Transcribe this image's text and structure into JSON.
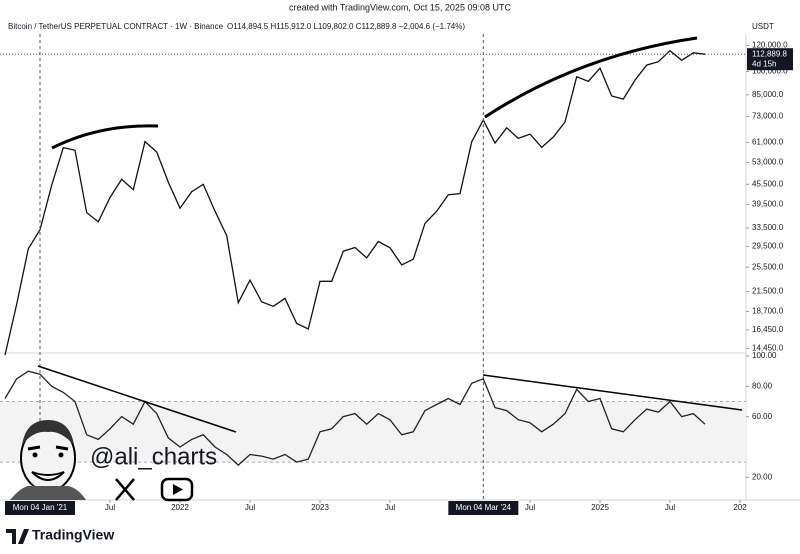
{
  "header": {
    "created": "created with TradingView.com, Oct 15, 2025 09:08 UTC",
    "brand": "TradingView"
  },
  "watermark": {
    "handle": "@ali_charts"
  },
  "chart_data": [
    {
      "type": "line",
      "title": "Bitcoin / TetherUS PERPETUAL CONTRACT · 1W · Binance",
      "ohlc": "O114,894.5 H115,912.0 L109,802.0 C112,889.8 −2,004.6 (−1.74%)",
      "unit": "USDT",
      "color": "#111111",
      "scale": "log",
      "x": [
        "2020-10",
        "2020-11",
        "2020-12",
        "2021-01",
        "2021-02",
        "2021-03",
        "2021-04",
        "2021-05",
        "2021-06",
        "2021-07",
        "2021-08",
        "2021-09",
        "2021-10",
        "2021-11",
        "2021-12",
        "2022-01",
        "2022-02",
        "2022-03",
        "2022-04",
        "2022-05",
        "2022-06",
        "2022-07",
        "2022-08",
        "2022-09",
        "2022-10",
        "2022-11",
        "2022-12",
        "2023-01",
        "2023-02",
        "2023-03",
        "2023-04",
        "2023-05",
        "2023-06",
        "2023-07",
        "2023-08",
        "2023-09",
        "2023-10",
        "2023-11",
        "2023-12",
        "2024-01",
        "2024-02",
        "2024-03",
        "2024-04",
        "2024-05",
        "2024-06",
        "2024-07",
        "2024-08",
        "2024-09",
        "2024-10",
        "2024-11",
        "2024-12",
        "2025-01",
        "2025-02",
        "2025-03",
        "2025-04",
        "2025-05",
        "2025-06",
        "2025-07",
        "2025-08",
        "2025-09",
        "2025-10"
      ],
      "values": [
        13800,
        19700,
        29000,
        33100,
        45200,
        58800,
        57700,
        37300,
        35000,
        41500,
        47100,
        43800,
        61300,
        57000,
        46200,
        38500,
        43200,
        45500,
        37700,
        31800,
        19900,
        23300,
        20000,
        19400,
        20500,
        17200,
        16550,
        23100,
        23100,
        28500,
        29250,
        27200,
        30500,
        29200,
        25900,
        26950,
        34650,
        37700,
        42300,
        42600,
        61200,
        71300,
        60700,
        67500,
        62700,
        64600,
        58900,
        63300,
        70300,
        96400,
        93400,
        102400,
        84300,
        82500,
        94200,
        104600,
        107100,
        115700,
        108200,
        114000,
        112889.8
      ],
      "last": {
        "value": 112889.8,
        "label": "112,889.8",
        "countdown": "4d 15h"
      },
      "xlim": [
        "2020-10",
        "2026-01"
      ],
      "ylim": [
        14000,
        130000
      ],
      "yticks": [
        {
          "value": 120000,
          "label": "120,000.0"
        },
        {
          "value": 100000,
          "label": "100,000.0"
        },
        {
          "value": 85000,
          "label": "85,000.0"
        },
        {
          "value": 73000,
          "label": "73,000.0"
        },
        {
          "value": 61000,
          "label": "61,000.0"
        },
        {
          "value": 53000,
          "label": "53,000.0"
        },
        {
          "value": 45500,
          "label": "45,500.0"
        },
        {
          "value": 39500,
          "label": "39,500.0"
        },
        {
          "value": 33500,
          "label": "33,500.0"
        },
        {
          "value": 29500,
          "label": "29,500.0"
        },
        {
          "value": 25500,
          "label": "25,500.0"
        },
        {
          "value": 21500,
          "label": "21,500.0"
        },
        {
          "value": 18700,
          "label": "18,700.0"
        },
        {
          "value": 16450,
          "label": "16,450.0"
        },
        {
          "value": 14450,
          "label": "14,450.0"
        }
      ]
    },
    {
      "type": "line",
      "color": "#222222",
      "x": [
        "2020-10",
        "2020-11",
        "2020-12",
        "2021-01",
        "2021-02",
        "2021-03",
        "2021-04",
        "2021-05",
        "2021-06",
        "2021-07",
        "2021-08",
        "2021-09",
        "2021-10",
        "2021-11",
        "2021-12",
        "2022-01",
        "2022-02",
        "2022-03",
        "2022-04",
        "2022-05",
        "2022-06",
        "2022-07",
        "2022-08",
        "2022-09",
        "2022-10",
        "2022-11",
        "2022-12",
        "2023-01",
        "2023-02",
        "2023-03",
        "2023-04",
        "2023-05",
        "2023-06",
        "2023-07",
        "2023-08",
        "2023-09",
        "2023-10",
        "2023-11",
        "2023-12",
        "2024-01",
        "2024-02",
        "2024-03",
        "2024-04",
        "2024-05",
        "2024-06",
        "2024-07",
        "2024-08",
        "2024-09",
        "2024-10",
        "2024-11",
        "2024-12",
        "2025-01",
        "2025-02",
        "2025-03",
        "2025-04",
        "2025-05",
        "2025-06",
        "2025-07",
        "2025-08",
        "2025-09",
        "2025-10"
      ],
      "values": [
        72,
        85,
        90,
        88,
        80,
        76,
        70,
        48,
        45,
        52,
        60,
        55,
        70,
        62,
        46,
        40,
        45,
        48,
        40,
        35,
        28,
        35,
        34,
        32,
        35,
        30,
        32,
        50,
        52,
        60,
        62,
        55,
        62,
        58,
        48,
        50,
        64,
        68,
        72,
        68,
        82,
        85,
        66,
        64,
        58,
        56,
        50,
        55,
        62,
        78,
        70,
        72,
        52,
        50,
        58,
        65,
        63,
        70,
        60,
        62,
        55
      ],
      "band": [
        30,
        70
      ],
      "xlim": [
        "2020-10",
        "2026-01"
      ],
      "ylim": [
        5,
        102
      ],
      "yticks": [
        {
          "value": 100,
          "label": "100.00"
        },
        {
          "value": 80,
          "label": "80.00"
        },
        {
          "value": 60,
          "label": "60.00"
        },
        {
          "value": 20,
          "label": "20.00"
        }
      ],
      "xticks": [
        {
          "value": "2021-01",
          "label": "Mon 04 Jan '21",
          "highlight": true
        },
        {
          "value": "2021-07",
          "label": "Jul"
        },
        {
          "value": "2022-01",
          "label": "2022"
        },
        {
          "value": "2022-07",
          "label": "Jul"
        },
        {
          "value": "2023-01",
          "label": "2023"
        },
        {
          "value": "2023-07",
          "label": "Jul"
        },
        {
          "value": "2024-03",
          "label": "Mon 04 Mar '24",
          "highlight": true
        },
        {
          "value": "2024-07",
          "label": "Jul"
        },
        {
          "value": "2025-01",
          "label": "2025"
        },
        {
          "value": "2025-07",
          "label": "Jul"
        },
        {
          "value": "2026-01",
          "label": "202"
        }
      ]
    }
  ]
}
